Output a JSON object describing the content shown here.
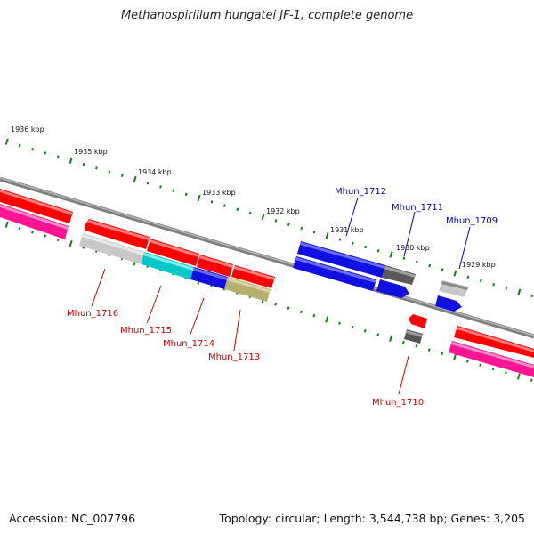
{
  "title": "Methanospirillum hungatei JF-1, complete genome",
  "footer": {
    "accession": "Accession: NC_007796",
    "summary": "Topology: circular; Length: 3,544,738 bp; Genes: 3,205"
  },
  "colors": {
    "backbone": "#808080",
    "tick": "#1a7a1a",
    "label_forward": "#0000aa",
    "label_reverse": "#cc0000"
  },
  "ticks": [
    {
      "label": "1936 kbp"
    },
    {
      "label": "1935 kbp"
    },
    {
      "label": "1934 kbp"
    },
    {
      "label": "1933 kbp"
    },
    {
      "label": "1932 kbp"
    },
    {
      "label": "1931 kbp"
    },
    {
      "label": "1930 kbp"
    },
    {
      "label": "1929 kbp"
    }
  ],
  "genes": [
    {
      "label": "Mhun_1716",
      "strand": "reverse"
    },
    {
      "label": "Mhun_1715",
      "strand": "reverse"
    },
    {
      "label": "Mhun_1714",
      "strand": "reverse"
    },
    {
      "label": "Mhun_1713",
      "strand": "reverse"
    },
    {
      "label": "Mhun_1712",
      "strand": "forward"
    },
    {
      "label": "Mhun_1711",
      "strand": "forward"
    },
    {
      "label": "Mhun_1710",
      "strand": "reverse"
    },
    {
      "label": "Mhun_1709",
      "strand": "forward"
    }
  ]
}
